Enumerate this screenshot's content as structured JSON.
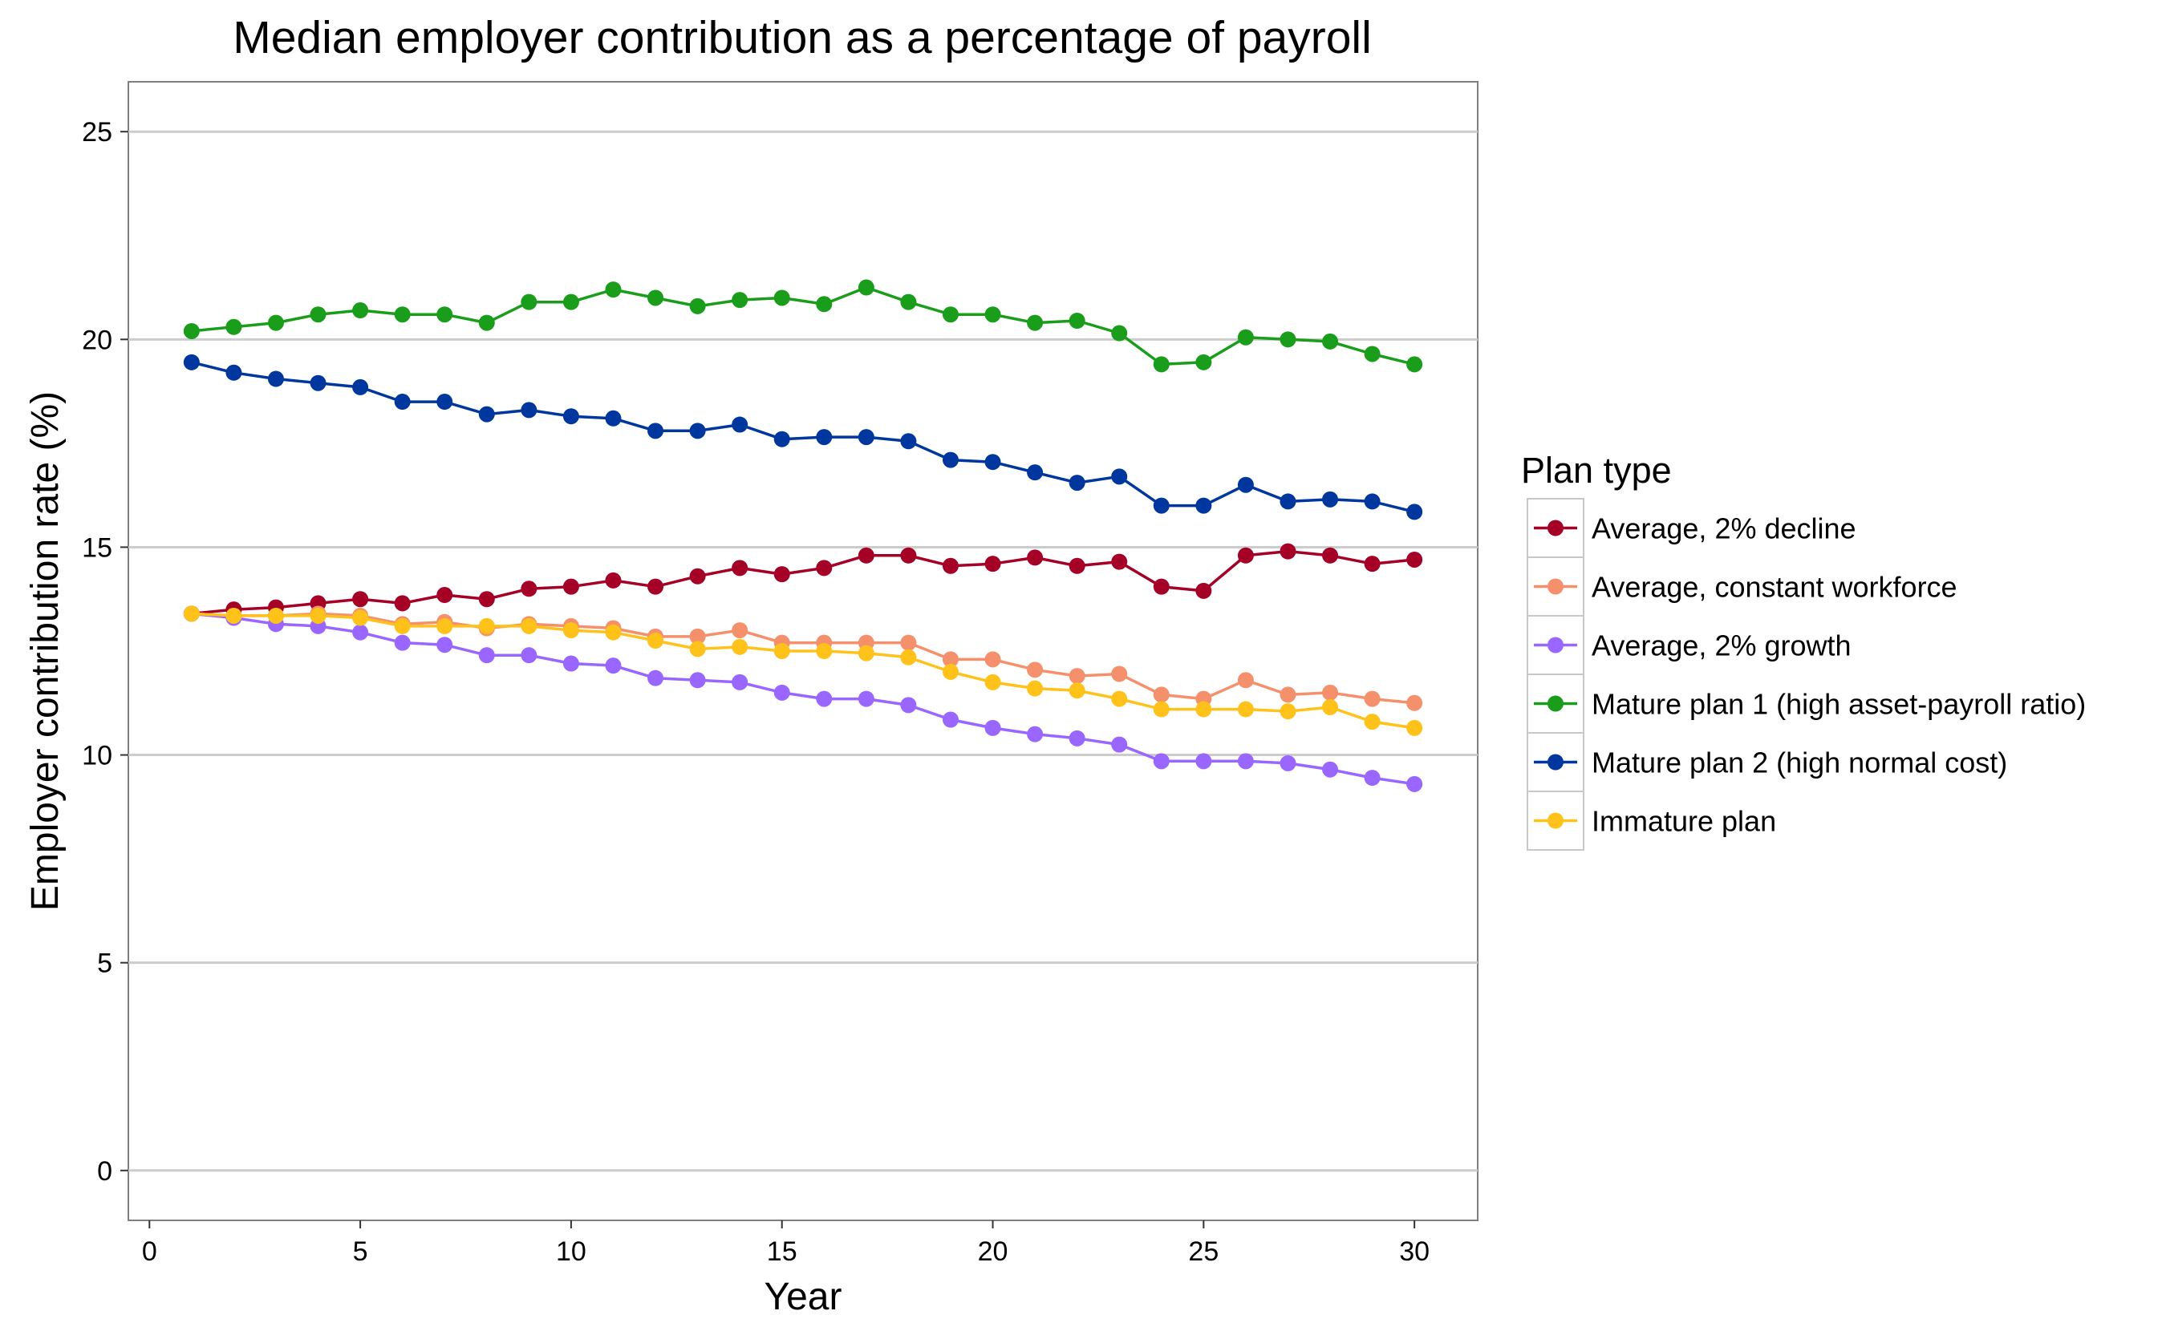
{
  "chart_data": {
    "type": "line",
    "title": "Median employer contribution as a percentage of payroll",
    "xlabel": "Year",
    "ylabel": "Employer contribution rate (%)",
    "xlim": [
      -0.5,
      31.5
    ],
    "ylim": [
      -1.2,
      26.2
    ],
    "x_ticks": [
      0,
      5,
      10,
      15,
      20,
      25,
      30
    ],
    "y_ticks": [
      0,
      5,
      10,
      15,
      20,
      25
    ],
    "grid": "horizontal",
    "legend": {
      "title": "Plan type",
      "placement": "right"
    },
    "x": [
      1,
      2,
      3,
      4,
      5,
      6,
      7,
      8,
      9,
      10,
      11,
      12,
      13,
      14,
      15,
      16,
      17,
      18,
      19,
      20,
      21,
      22,
      23,
      24,
      25,
      26,
      27,
      28,
      29,
      30
    ],
    "series": [
      {
        "name": "Average, 2% decline",
        "color": "#a50026",
        "values": [
          13.4,
          13.5,
          13.55,
          13.65,
          13.75,
          13.65,
          13.85,
          13.75,
          14.0,
          14.05,
          14.2,
          14.05,
          14.3,
          14.5,
          14.35,
          14.5,
          14.8,
          14.8,
          14.55,
          14.6,
          14.75,
          14.55,
          14.65,
          14.05,
          13.95,
          14.8,
          14.9,
          14.8,
          14.6,
          14.7
        ]
      },
      {
        "name": "Average, constant workforce",
        "color": "#f4906b",
        "values": [
          13.4,
          13.35,
          13.35,
          13.4,
          13.35,
          13.15,
          13.2,
          13.05,
          13.15,
          13.1,
          13.05,
          12.85,
          12.85,
          13.0,
          12.7,
          12.7,
          12.7,
          12.7,
          12.3,
          12.3,
          12.05,
          11.9,
          11.95,
          11.45,
          11.35,
          11.8,
          11.45,
          11.5,
          11.35,
          11.25
        ]
      },
      {
        "name": "Average, 2% growth",
        "color": "#9966ff",
        "values": [
          13.4,
          13.3,
          13.15,
          13.1,
          12.95,
          12.7,
          12.65,
          12.4,
          12.4,
          12.2,
          12.15,
          11.85,
          11.8,
          11.75,
          11.5,
          11.35,
          11.35,
          11.2,
          10.85,
          10.65,
          10.5,
          10.4,
          10.25,
          9.85,
          9.85,
          9.85,
          9.8,
          9.65,
          9.45,
          9.3
        ]
      },
      {
        "name": "Mature plan 1 (high asset-payroll ratio)",
        "color": "#1a9d1a",
        "values": [
          20.2,
          20.3,
          20.4,
          20.6,
          20.7,
          20.6,
          20.6,
          20.4,
          20.9,
          20.9,
          21.2,
          21.0,
          20.8,
          20.95,
          21.0,
          20.85,
          21.25,
          20.9,
          20.6,
          20.6,
          20.4,
          20.45,
          20.15,
          19.4,
          19.45,
          20.05,
          20.0,
          19.95,
          19.65,
          19.4
        ]
      },
      {
        "name": "Mature plan 2 (high normal cost)",
        "color": "#00379e",
        "values": [
          19.45,
          19.2,
          19.05,
          18.95,
          18.85,
          18.5,
          18.5,
          18.2,
          18.3,
          18.15,
          18.1,
          17.8,
          17.8,
          17.95,
          17.6,
          17.65,
          17.65,
          17.55,
          17.1,
          17.05,
          16.8,
          16.55,
          16.7,
          16.0,
          16.0,
          16.5,
          16.1,
          16.15,
          16.1,
          15.85
        ]
      },
      {
        "name": "Immature plan",
        "color": "#ffc21a",
        "values": [
          13.4,
          13.35,
          13.35,
          13.35,
          13.3,
          13.1,
          13.1,
          13.1,
          13.1,
          13.0,
          12.95,
          12.75,
          12.55,
          12.6,
          12.5,
          12.5,
          12.45,
          12.35,
          12.0,
          11.75,
          11.6,
          11.55,
          11.35,
          11.1,
          11.1,
          11.1,
          11.05,
          11.15,
          10.8,
          10.65
        ]
      }
    ]
  }
}
